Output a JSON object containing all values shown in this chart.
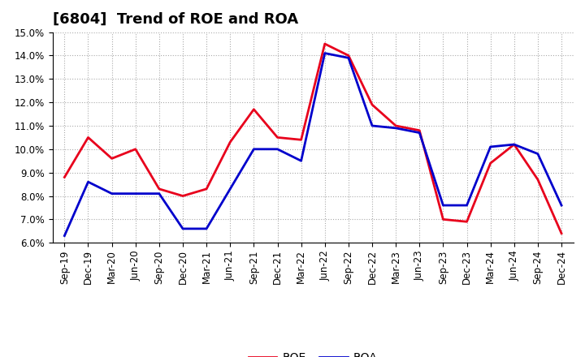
{
  "title": "[6804]  Trend of ROE and ROA",
  "labels": [
    "Sep-19",
    "Dec-19",
    "Mar-20",
    "Jun-20",
    "Sep-20",
    "Dec-20",
    "Mar-21",
    "Jun-21",
    "Sep-21",
    "Dec-21",
    "Mar-22",
    "Jun-22",
    "Sep-22",
    "Dec-22",
    "Mar-23",
    "Jun-23",
    "Sep-23",
    "Dec-23",
    "Mar-24",
    "Jun-24",
    "Sep-24",
    "Dec-24"
  ],
  "ROE": [
    8.8,
    10.5,
    9.6,
    10.0,
    8.3,
    8.0,
    8.3,
    10.3,
    11.7,
    10.5,
    10.4,
    14.5,
    14.0,
    11.9,
    11.0,
    10.8,
    7.0,
    6.9,
    9.4,
    10.2,
    8.7,
    6.4
  ],
  "ROA": [
    6.3,
    8.6,
    8.1,
    8.1,
    8.1,
    6.6,
    6.6,
    8.3,
    10.0,
    10.0,
    9.5,
    14.1,
    13.9,
    11.0,
    10.9,
    10.7,
    7.6,
    7.6,
    10.1,
    10.2,
    9.8,
    7.6
  ],
  "roe_color": "#e8001c",
  "roa_color": "#0000cc",
  "ylim_min": 6.0,
  "ylim_max": 15.0,
  "yticks": [
    6.0,
    7.0,
    8.0,
    9.0,
    10.0,
    11.0,
    12.0,
    13.0,
    14.0,
    15.0
  ],
  "line_width": 2.0,
  "background_color": "#ffffff",
  "plot_bg_color": "#ffffff",
  "grid_color": "#aaaaaa",
  "title_fontsize": 13,
  "tick_fontsize": 8.5,
  "legend_fontsize": 10
}
